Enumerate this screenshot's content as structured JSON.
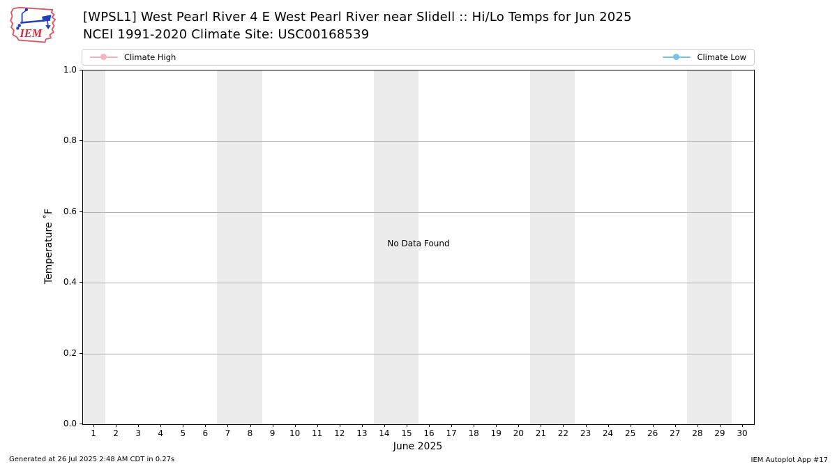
{
  "header": {
    "title_line1": "[WPSL1] West Pearl River 4 E West Pearl River near Slidell :: Hi/Lo Temps for Jun 2025",
    "title_line2": "NCEI 1991-2020 Climate Site: USC00168539",
    "logo_text": "IEM"
  },
  "legend": {
    "items": [
      {
        "label": "Climate High",
        "color": "#f7b2c0"
      },
      {
        "label": "Climate Low",
        "color": "#74c6e4"
      }
    ]
  },
  "chart_data": {
    "type": "line",
    "title": "[WPSL1] West Pearl River 4 E West Pearl River near Slidell :: Hi/Lo Temps for Jun 2025",
    "subtitle": "NCEI 1991-2020 Climate Site: USC00168539",
    "xlabel": "June 2025",
    "ylabel": "Temperature ˚F",
    "xlim": [
      0.5,
      30.5
    ],
    "ylim": [
      0.0,
      1.0
    ],
    "x_ticks": [
      1,
      2,
      3,
      4,
      5,
      6,
      7,
      8,
      9,
      10,
      11,
      12,
      13,
      14,
      15,
      16,
      17,
      18,
      19,
      20,
      21,
      22,
      23,
      24,
      25,
      26,
      27,
      28,
      29,
      30
    ],
    "y_ticks": [
      0.0,
      0.2,
      0.4,
      0.6,
      0.8,
      1.0
    ],
    "y_tick_labels": [
      "0.0",
      "0.2",
      "0.4",
      "0.6",
      "0.8",
      "1.0"
    ],
    "series": [
      {
        "name": "Climate High",
        "color": "#f7b2c0",
        "values": []
      },
      {
        "name": "Climate Low",
        "color": "#74c6e4",
        "values": []
      }
    ],
    "no_data_message": "No Data Found",
    "weekend_bands": [
      [
        0.5,
        1.5
      ],
      [
        6.5,
        8.5
      ],
      [
        13.5,
        15.5
      ],
      [
        20.5,
        22.5
      ],
      [
        27.5,
        29.5
      ]
    ],
    "band_color": "#ececec",
    "grid": "horizontal-only",
    "grid_color": "#b0b0b0",
    "legend_position": "top-full-width"
  },
  "footer": {
    "left": "Generated at 26 Jul 2025 2:48 AM CDT in 0.27s",
    "right": "IEM Autoplot App #17"
  }
}
